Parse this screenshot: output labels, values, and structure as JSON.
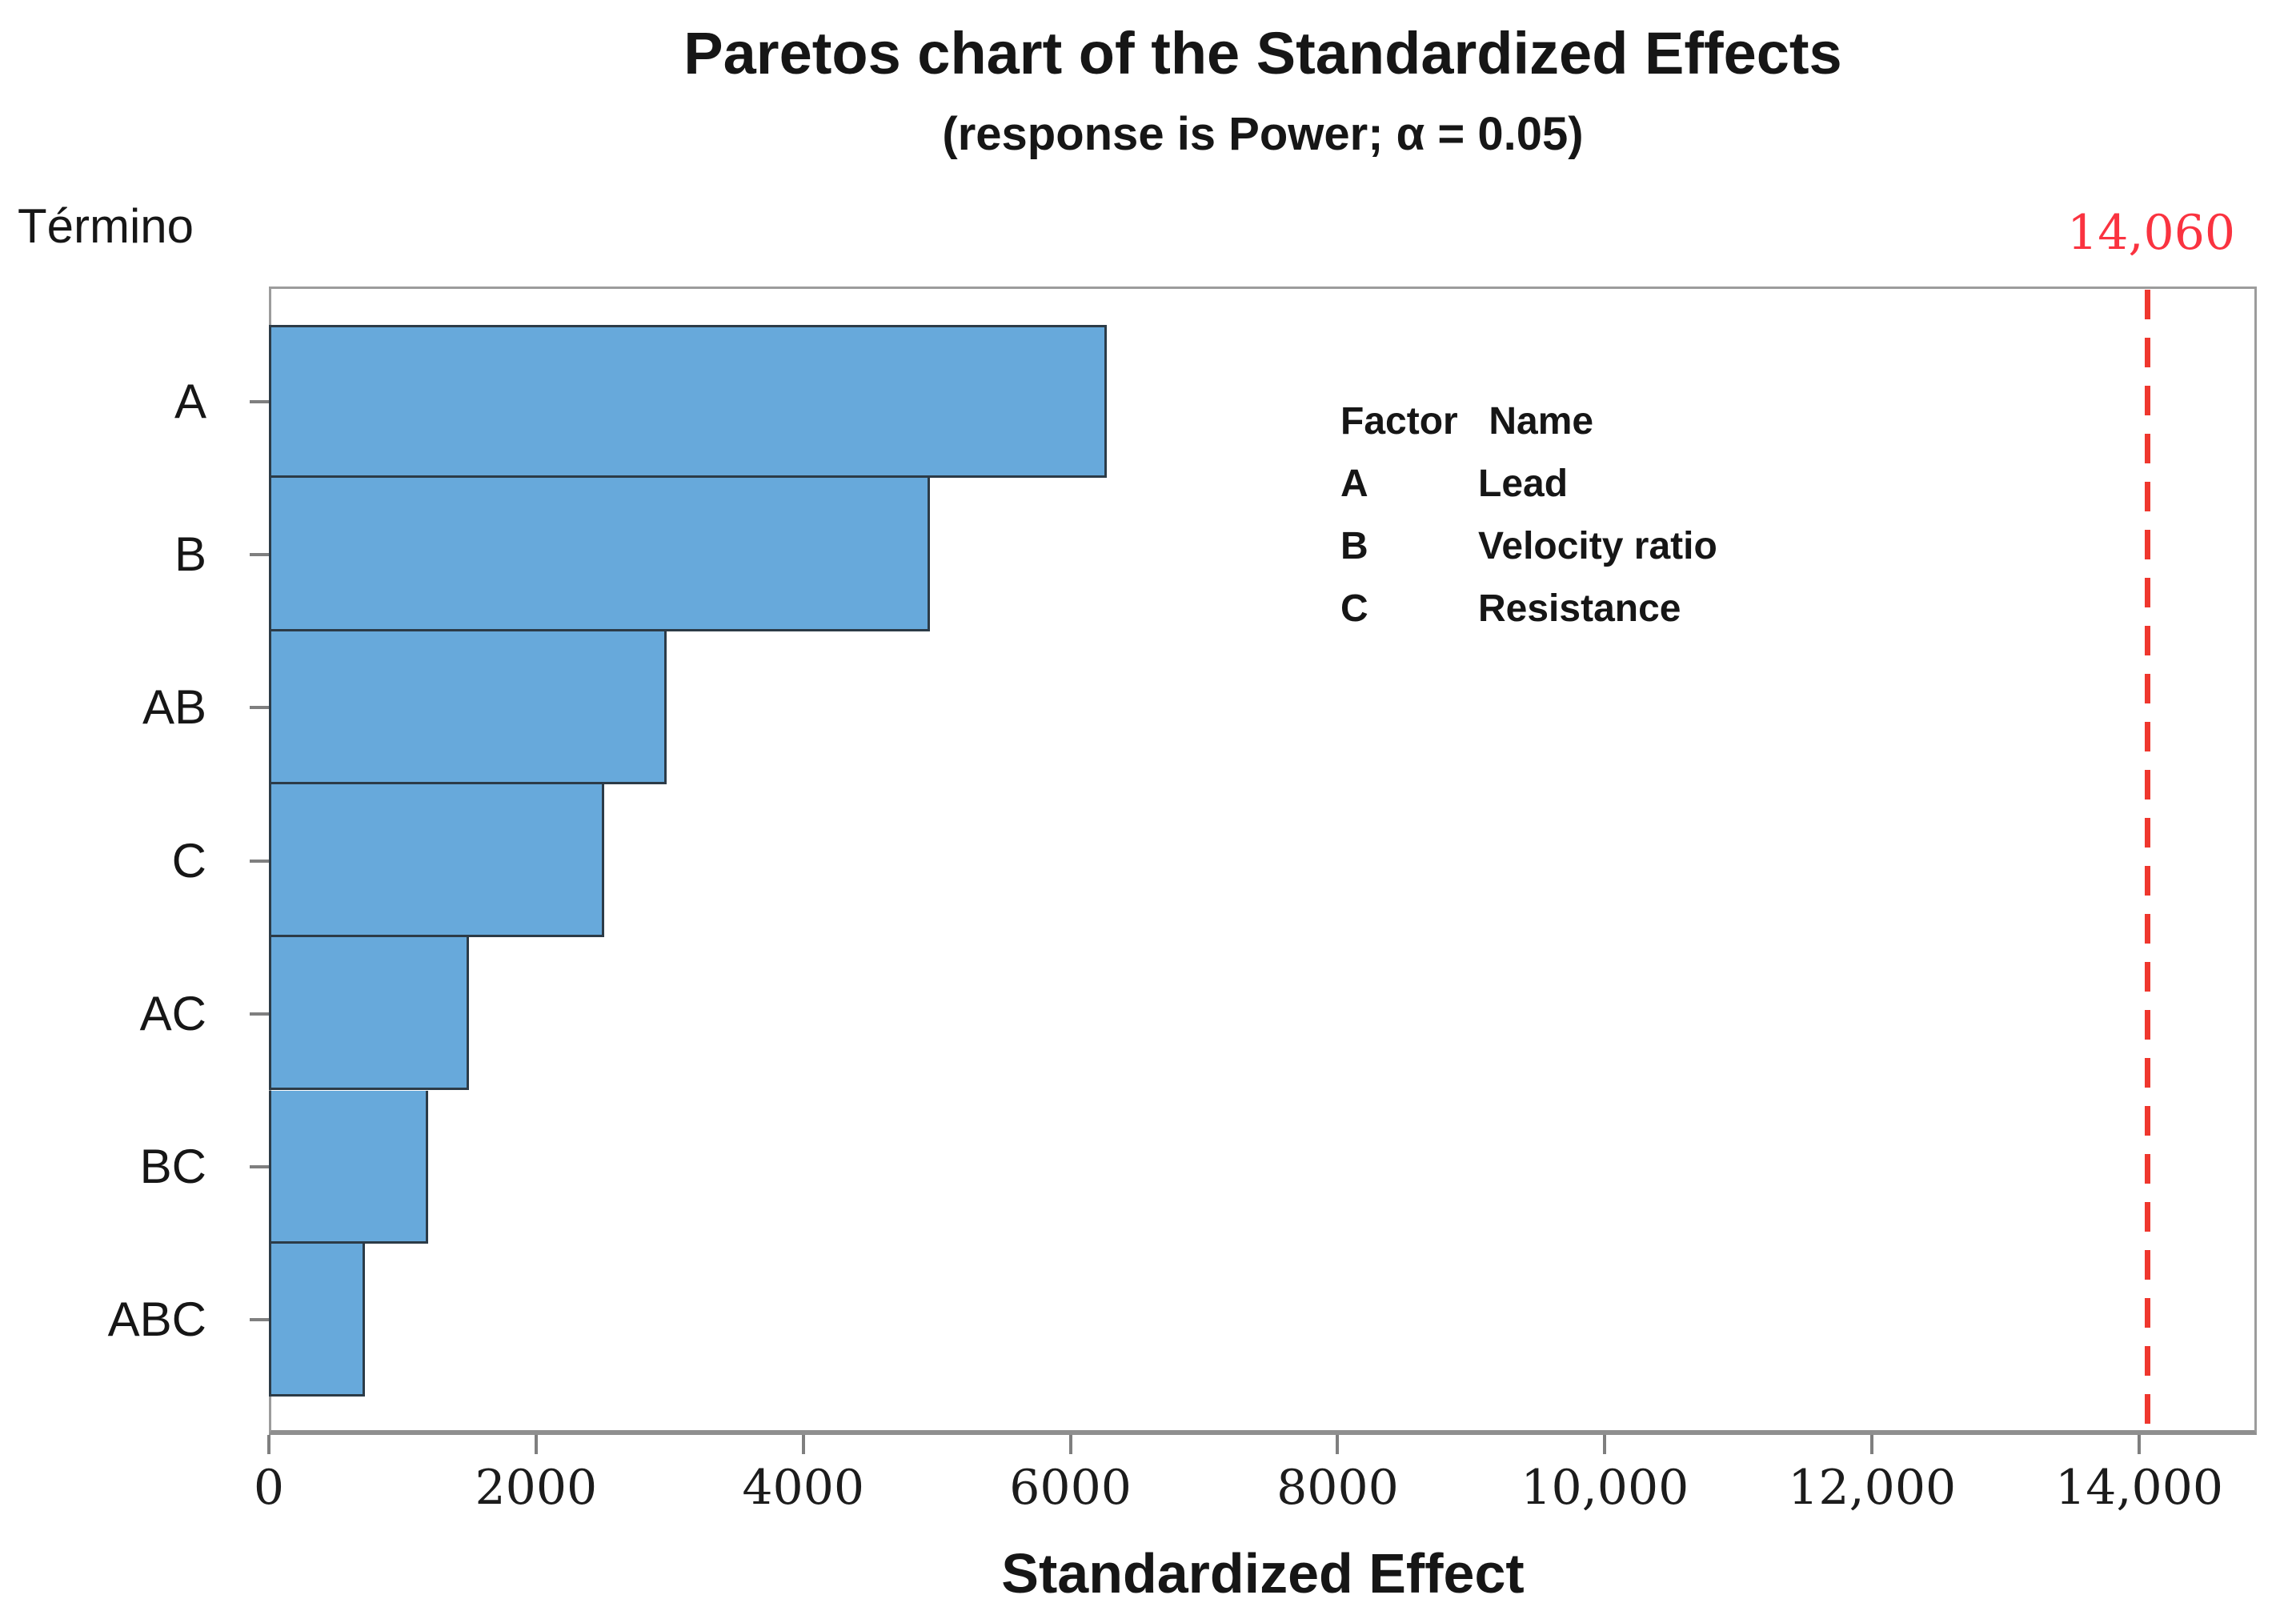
{
  "chart_data": {
    "type": "bar",
    "orientation": "horizontal",
    "title": "Paretos chart of the Standardized Effects",
    "subtitle": "(response is Power; α = 0.05)",
    "y_axis_title": "Término",
    "xlabel": "Standardized Effect",
    "categories": [
      "A",
      "B",
      "AB",
      "C",
      "AC",
      "BC",
      "ABC"
    ],
    "values": [
      6270,
      4950,
      2980,
      2510,
      1500,
      1190,
      720
    ],
    "xlim": [
      0,
      14880
    ],
    "x_ticks": [
      {
        "value": 0,
        "label": "0"
      },
      {
        "value": 2000,
        "label": "2000"
      },
      {
        "value": 4000,
        "label": "4000"
      },
      {
        "value": 6000,
        "label": "6000"
      },
      {
        "value": 8000,
        "label": "8000"
      },
      {
        "value": 10000,
        "label": "10,000"
      },
      {
        "value": 12000,
        "label": "12,000"
      },
      {
        "value": 14000,
        "label": "14,000"
      }
    ],
    "reference_line": {
      "value": 14060,
      "label": "14,060"
    },
    "legend": {
      "headers": [
        "Factor",
        "Name"
      ],
      "rows": [
        [
          "A",
          "Lead"
        ],
        [
          "B",
          "Velocity ratio"
        ],
        [
          "C",
          "Resistance"
        ]
      ]
    },
    "grid": false,
    "legend_position": "inside-top-right"
  },
  "colors": {
    "bar_fill": "#67a9db",
    "bar_border": "#2c3b47",
    "reference_line": "#ef372e",
    "reference_label": "#fa3340",
    "axis": "#9c9c9c",
    "text": "#161616"
  }
}
